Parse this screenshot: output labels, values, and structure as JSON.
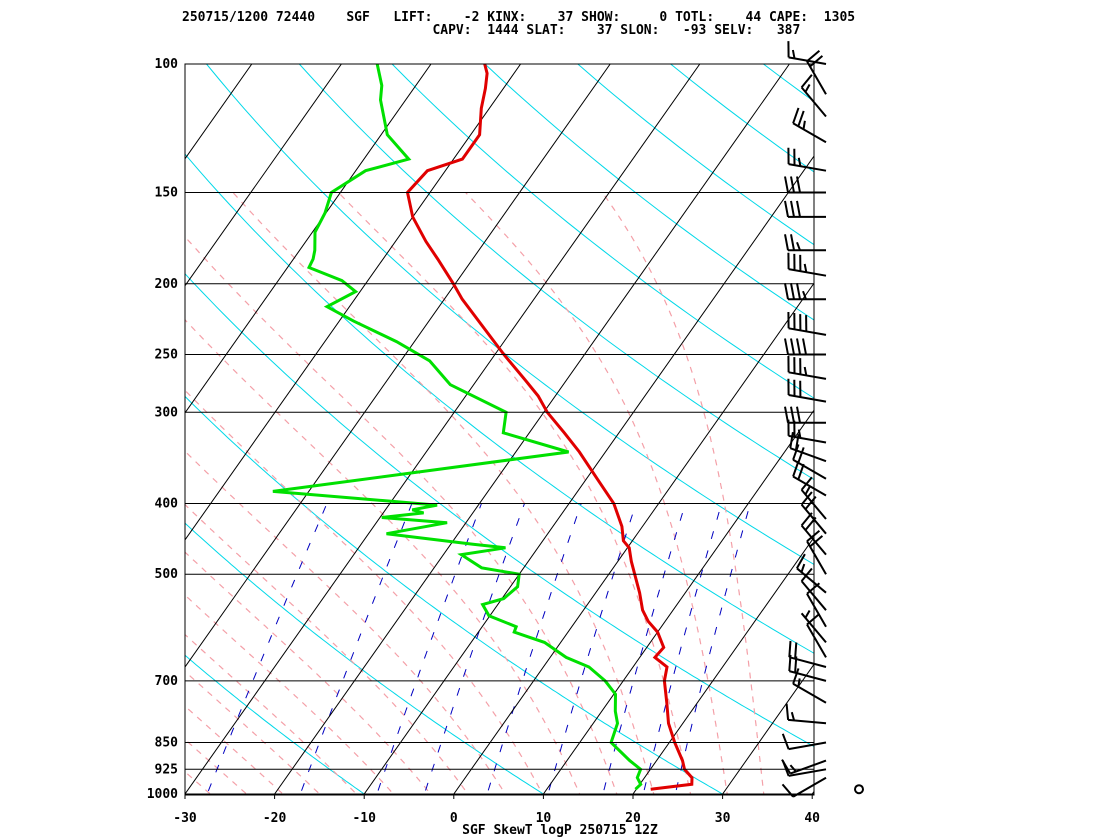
{
  "header": {
    "line1": "250715/1200 72440    SGF   LIFT:    -2 KINX:    37 SHOW:     0 TOTL:    44 CAPE:  1305",
    "line2": "                                CAPV:  1444 SLAT:    37 SLON:   -93 SELV:   387"
  },
  "chart_data": {
    "type": "line",
    "title": "SGF SkewT logP 250715 12Z",
    "xlabel": "",
    "ylabel": "",
    "x_scale": "skewed temperature (°C)",
    "y_scale": "log pressure (hPa)",
    "xlim": [
      -30,
      40
    ],
    "ylim": [
      1000,
      100
    ],
    "x_ticks": [
      "-30",
      "-20",
      "-10",
      "0",
      "10",
      "20",
      "30",
      "40"
    ],
    "pressure_ticks": [
      "100",
      "150",
      "200",
      "250",
      "300",
      "400",
      "500",
      "700",
      "850",
      "925",
      "1000"
    ],
    "colors": {
      "temperature": "#e00000",
      "dewpoint": "#00e000",
      "isotherm": "#000000",
      "dry_adiabat": "#00d8e8",
      "moist_adiabat": "#f4a0a8",
      "mixing_ratio": "#0000c0",
      "wind_barb": "#000000"
    },
    "series": [
      {
        "name": "temperature",
        "points": [
          [
            985,
            21.6
          ],
          [
            970,
            25.8
          ],
          [
            950,
            25.3
          ],
          [
            925,
            23.8
          ],
          [
            900,
            22.9
          ],
          [
            850,
            20.6
          ],
          [
            800,
            18.4
          ],
          [
            750,
            16.6
          ],
          [
            700,
            14.6
          ],
          [
            670,
            13.8
          ],
          [
            650,
            11.7
          ],
          [
            630,
            11.9
          ],
          [
            600,
            10.0
          ],
          [
            580,
            8.1
          ],
          [
            560,
            6.6
          ],
          [
            530,
            4.9
          ],
          [
            500,
            2.9
          ],
          [
            480,
            1.5
          ],
          [
            460,
            0.2
          ],
          [
            450,
            -1.0
          ],
          [
            430,
            -2.3
          ],
          [
            400,
            -5.0
          ],
          [
            370,
            -8.8
          ],
          [
            340,
            -12.9
          ],
          [
            320,
            -16.1
          ],
          [
            300,
            -19.6
          ],
          [
            285,
            -21.9
          ],
          [
            270,
            -24.8
          ],
          [
            250,
            -29.0
          ],
          [
            230,
            -33.3
          ],
          [
            210,
            -38.0
          ],
          [
            200,
            -40.2
          ],
          [
            185,
            -43.9
          ],
          [
            175,
            -46.6
          ],
          [
            162,
            -50.0
          ],
          [
            150,
            -52.5
          ],
          [
            140,
            -52.0
          ],
          [
            135,
            -49.0
          ],
          [
            125,
            -49.0
          ],
          [
            115,
            -50.9
          ],
          [
            108,
            -52.0
          ],
          [
            103,
            -53.0
          ],
          [
            100,
            -54.0
          ]
        ]
      },
      {
        "name": "dewpoint",
        "points": [
          [
            985,
            19.9
          ],
          [
            970,
            20.1
          ],
          [
            950,
            19.2
          ],
          [
            925,
            18.9
          ],
          [
            900,
            17.0
          ],
          [
            850,
            13.5
          ],
          [
            800,
            12.7
          ],
          [
            770,
            11.5
          ],
          [
            730,
            10.2
          ],
          [
            700,
            8.0
          ],
          [
            670,
            5.1
          ],
          [
            650,
            1.8
          ],
          [
            620,
            -1.8
          ],
          [
            600,
            -6.0
          ],
          [
            590,
            -6.2
          ],
          [
            570,
            -10.1
          ],
          [
            550,
            -11.7
          ],
          [
            540,
            -9.8
          ],
          [
            520,
            -9.2
          ],
          [
            500,
            -10.0
          ],
          [
            490,
            -14.7
          ],
          [
            470,
            -18.0
          ],
          [
            460,
            -13.6
          ],
          [
            455,
            -17.5
          ],
          [
            440,
            -28.0
          ],
          [
            425,
            -22.1
          ],
          [
            418,
            -29.8
          ],
          [
            412,
            -25.5
          ],
          [
            408,
            -27.0
          ],
          [
            402,
            -24.6
          ],
          [
            385,
            -44.0
          ],
          [
            340,
            -14.1
          ],
          [
            320,
            -22.9
          ],
          [
            300,
            -24.2
          ],
          [
            275,
            -32.6
          ],
          [
            255,
            -36.8
          ],
          [
            240,
            -42.0
          ],
          [
            225,
            -48.4
          ],
          [
            215,
            -52.5
          ],
          [
            205,
            -50.5
          ],
          [
            198,
            -52.9
          ],
          [
            190,
            -57.6
          ],
          [
            185,
            -57.8
          ],
          [
            180,
            -58.3
          ],
          [
            170,
            -59.7
          ],
          [
            160,
            -60.1
          ],
          [
            150,
            -61.0
          ],
          [
            140,
            -58.9
          ],
          [
            135,
            -55.0
          ],
          [
            125,
            -59.3
          ],
          [
            112,
            -62.8
          ],
          [
            107,
            -63.8
          ],
          [
            100,
            -66.0
          ]
        ]
      }
    ],
    "wind_profile": [
      [
        985,
        0,
        0
      ],
      [
        950,
        240,
        10
      ],
      [
        925,
        260,
        10
      ],
      [
        900,
        250,
        15
      ],
      [
        850,
        260,
        10
      ],
      [
        800,
        275,
        15
      ],
      [
        750,
        300,
        15
      ],
      [
        700,
        285,
        20
      ],
      [
        670,
        285,
        20
      ],
      [
        650,
        330,
        10
      ],
      [
        620,
        320,
        5
      ],
      [
        590,
        330,
        10
      ],
      [
        560,
        320,
        10
      ],
      [
        530,
        310,
        15
      ],
      [
        500,
        330,
        20
      ],
      [
        470,
        320,
        20
      ],
      [
        440,
        320,
        20
      ],
      [
        420,
        320,
        15
      ],
      [
        390,
        300,
        20
      ],
      [
        370,
        300,
        20
      ],
      [
        350,
        290,
        20
      ],
      [
        330,
        280,
        25
      ],
      [
        310,
        270,
        30
      ],
      [
        290,
        280,
        30
      ],
      [
        270,
        280,
        35
      ],
      [
        250,
        270,
        40
      ],
      [
        235,
        280,
        40
      ],
      [
        210,
        270,
        35
      ],
      [
        195,
        280,
        35
      ],
      [
        180,
        270,
        25
      ],
      [
        162,
        270,
        30
      ],
      [
        150,
        270,
        30
      ],
      [
        140,
        280,
        25
      ],
      [
        128,
        300,
        25
      ],
      [
        118,
        320,
        15
      ],
      [
        110,
        330,
        20
      ],
      [
        100,
        280,
        15
      ]
    ]
  }
}
